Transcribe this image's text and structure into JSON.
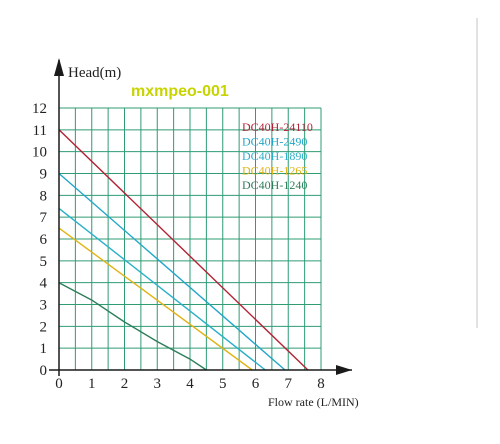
{
  "watermark": "mxmpeo-001",
  "colors": {
    "grid": "#2f9c74",
    "axis": "#1a1a1a",
    "watermark": "#c8d400"
  },
  "chart_data": {
    "type": "line",
    "title": "",
    "xlabel": "Flow rate (L/MIN)",
    "ylabel": "Head(m)",
    "xlim": [
      0,
      8
    ],
    "ylim": [
      0,
      12
    ],
    "x_ticks": [
      0,
      1,
      2,
      3,
      4,
      5,
      6,
      7,
      8
    ],
    "y_ticks": [
      0,
      1,
      2,
      3,
      4,
      5,
      6,
      7,
      8,
      9,
      10,
      11,
      12
    ],
    "grid": true,
    "legend_position": "top-right",
    "series": [
      {
        "name": "DC40H-24110",
        "color": "#b22234",
        "points": [
          [
            0,
            11
          ],
          [
            7.6,
            0
          ]
        ]
      },
      {
        "name": "DC40H-2490",
        "color": "#22a6c8",
        "points": [
          [
            0,
            9
          ],
          [
            6.9,
            0
          ]
        ]
      },
      {
        "name": "DC40H-1890",
        "color": "#2ab0c8",
        "points": [
          [
            0,
            7.4
          ],
          [
            6.3,
            0
          ]
        ]
      },
      {
        "name": "DC40H-1265",
        "color": "#e0b415",
        "points": [
          [
            0,
            6.5
          ],
          [
            5.9,
            0
          ]
        ]
      },
      {
        "name": "DC40H-1240",
        "color": "#2e7d5b",
        "points": [
          [
            0,
            4
          ],
          [
            1,
            3.2
          ],
          [
            2,
            2.2
          ],
          [
            3,
            1.3
          ],
          [
            4,
            0.5
          ],
          [
            4.5,
            0
          ]
        ]
      }
    ]
  }
}
